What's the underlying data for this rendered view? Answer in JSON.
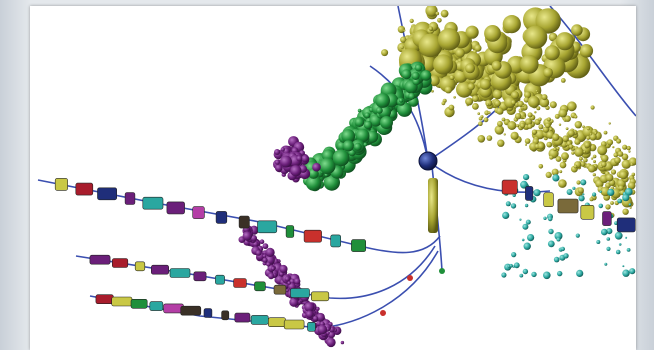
{
  "image": {
    "subject": "3d-sphere-cloud-visualization",
    "colors": {
      "purple": "#6b1f7a",
      "green": "#1f8f3a",
      "olive": "#a8a632",
      "blue_line": "#3b4fb0",
      "teal": "#2aa7a0",
      "magenta": "#b43ea6",
      "yellow": "#c9c845",
      "dark": "#3a3026",
      "red": "#c9302c",
      "navy": "#1f2e7a"
    }
  }
}
